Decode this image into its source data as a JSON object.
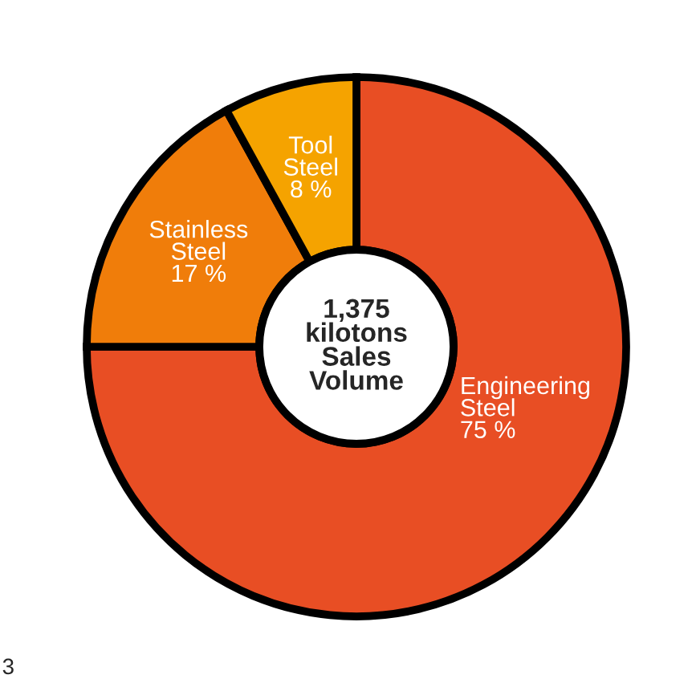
{
  "chart_data": {
    "type": "donut",
    "categories": [
      "Engineering Steel",
      "Stainless Steel",
      "Tool Steel"
    ],
    "values": [
      75,
      17,
      8
    ],
    "value_labels": [
      "75 %",
      "17 %",
      "8 %"
    ],
    "colors": [
      "#e84e24",
      "#f07d0a",
      "#f5a300"
    ],
    "annotations": [
      "1,375\nkilotons\nSales\nVolume",
      "3"
    ],
    "legend": false
  }
}
